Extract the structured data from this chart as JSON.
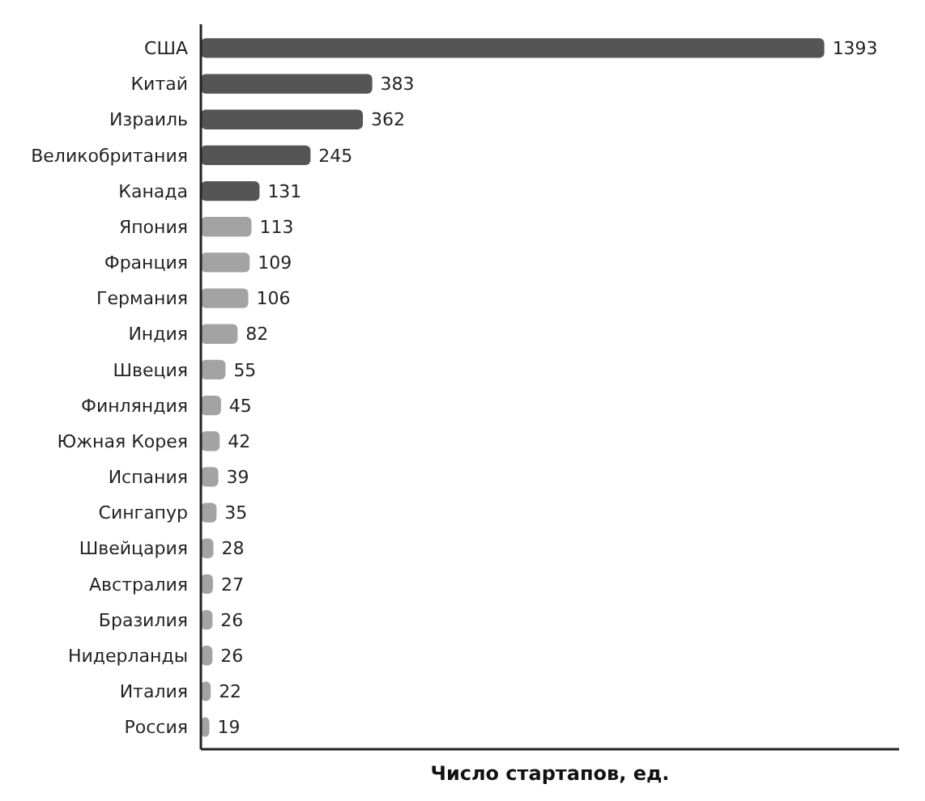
{
  "chart_data": {
    "type": "bar",
    "orientation": "horizontal",
    "xlabel": "Число стартапов, ед.",
    "categories": [
      "США",
      "Китай",
      "Израиль",
      "Великобритания",
      "Канада",
      "Япония",
      "Франция",
      "Германия",
      "Индия",
      "Швеция",
      "Финляндия",
      "Южная Корея",
      "Испания",
      "Сингапур",
      "Швейцария",
      "Австралия",
      "Бразилия",
      "Нидерланды",
      "Италия",
      "Россия"
    ],
    "values": [
      1393,
      383,
      362,
      245,
      131,
      113,
      109,
      106,
      82,
      55,
      45,
      42,
      39,
      35,
      28,
      27,
      26,
      26,
      22,
      19
    ],
    "colors": [
      "#555555",
      "#555555",
      "#555555",
      "#555555",
      "#555555",
      "#a3a3a3",
      "#a3a3a3",
      "#a3a3a3",
      "#a3a3a3",
      "#a3a3a3",
      "#a3a3a3",
      "#a3a3a3",
      "#a3a3a3",
      "#a3a3a3",
      "#a3a3a3",
      "#a3a3a3",
      "#a3a3a3",
      "#a3a3a3",
      "#a3a3a3",
      "#a3a3a3"
    ],
    "data_labels": true
  }
}
